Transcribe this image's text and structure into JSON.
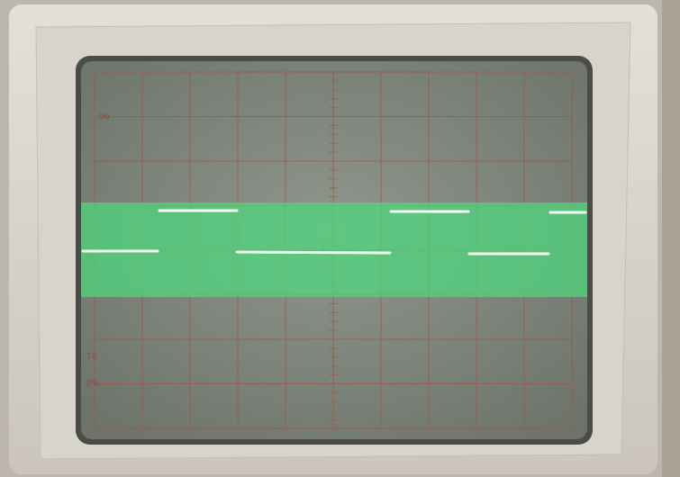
{
  "graticule_labels": [
    "90",
    "10",
    "0%"
  ]
}
